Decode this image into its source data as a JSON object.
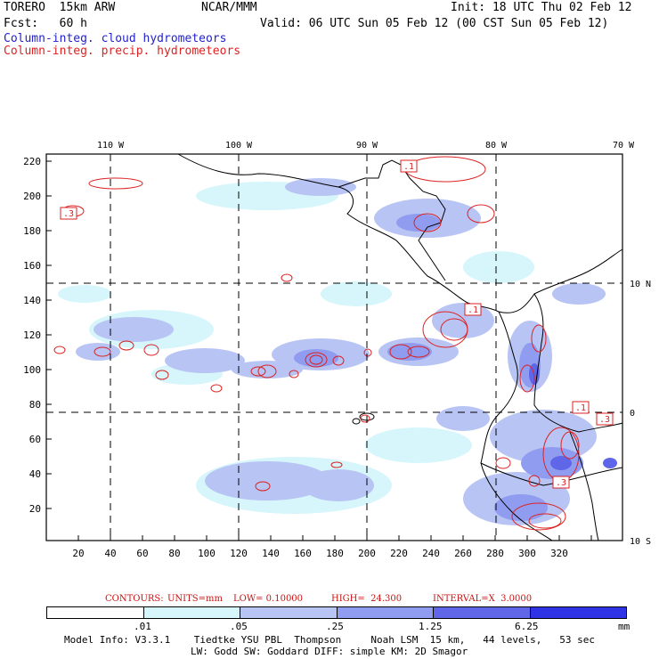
{
  "header": {
    "model": "TORERO  15km ARW",
    "org": "NCAR/MMM",
    "init": "Init: 18 UTC Thu 02 Feb 12",
    "fcst": "Fcst:   60 h",
    "valid": "Valid: 06 UTC Sun 05 Feb 12 (00 CST Sun 05 Feb 12)",
    "legend_cloud": "Column-integ. cloud hydrometeors",
    "legend_precip": "Column-integ. precip. hydrometeors"
  },
  "colors": {
    "cloud": "#2222cc",
    "precip": "#dd2222",
    "shade_1": "#d6f6fb",
    "shade_2": "#b8c4f4",
    "shade_3": "#8f9cf0",
    "shade_4": "#5f66e8",
    "shade_5": "#2f33e6"
  },
  "map": {
    "top_lon_labels": [
      "110 W",
      "100 W",
      "90 W",
      "80 W",
      "70 W"
    ],
    "right_lat_labels": [
      "10 N",
      "0",
      "10 S"
    ],
    "x_ticks": [
      "20",
      "40",
      "60",
      "80",
      "100",
      "120",
      "140",
      "160",
      "180",
      "200",
      "220",
      "240",
      "260",
      "280",
      "300",
      "320"
    ],
    "y_ticks": [
      "20",
      "40",
      "60",
      "80",
      "100",
      "120",
      "140",
      "160",
      "180",
      "200",
      "220"
    ],
    "contour_labels": [
      ".1",
      ".3",
      ".1",
      ".1",
      ".3",
      ".3"
    ]
  },
  "contour_info": {
    "prefix": "CONTOURS:",
    "units": "UNITS=mm",
    "low": "LOW= 0.10000",
    "high": "HIGH=  24.300",
    "interval": "INTERVAL=X  3.0000"
  },
  "colorbar": {
    "labels": [
      ".01",
      ".05",
      ".25",
      "1.25",
      "6.25"
    ],
    "unit": "mm"
  },
  "footer": {
    "line1": "Model Info: V3.3.1    Tiedtke YSU PBL  Thompson     Noah LSM  15 km,   44 levels,   53 sec",
    "line2": "LW: Godd SW: Goddard DIFF: simple KM: 2D Smagor"
  }
}
